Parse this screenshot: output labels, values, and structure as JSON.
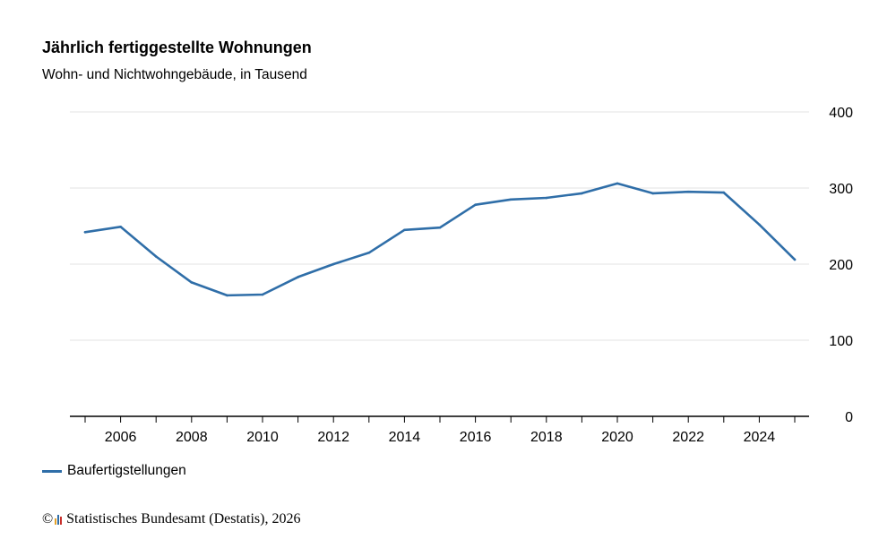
{
  "chart_data": {
    "type": "line",
    "title": "Jährlich fertiggestellte Wohnungen",
    "subtitle": "Wohn- und Nichtwohngebäude, in Tausend",
    "x": [
      2005,
      2006,
      2007,
      2008,
      2009,
      2010,
      2011,
      2012,
      2013,
      2014,
      2015,
      2016,
      2017,
      2018,
      2019,
      2020,
      2021,
      2022,
      2023,
      2024,
      2025
    ],
    "x_tick_labels": [
      "2006",
      "2008",
      "2010",
      "2012",
      "2014",
      "2016",
      "2018",
      "2020",
      "2022",
      "2024"
    ],
    "y_tick_labels": [
      "0",
      "100",
      "200",
      "300",
      "400"
    ],
    "ylim": [
      0,
      400
    ],
    "grid": true,
    "y_axis_position": "right",
    "legend_position": "bottom-left",
    "series": [
      {
        "name": "Baufertigstellungen",
        "color": "#2f6ea8",
        "values": [
          242,
          249,
          210,
          176,
          159,
          160,
          183,
          200,
          215,
          245,
          248,
          278,
          285,
          287,
          293,
          306,
          293,
          295,
          294,
          252,
          206
        ]
      }
    ]
  },
  "source": {
    "copyright": "©",
    "text": "Statistisches Bundesamt (Destatis), 2026",
    "logo_colors": [
      "#e2a129",
      "#2f6ea8",
      "#c9302c"
    ]
  }
}
